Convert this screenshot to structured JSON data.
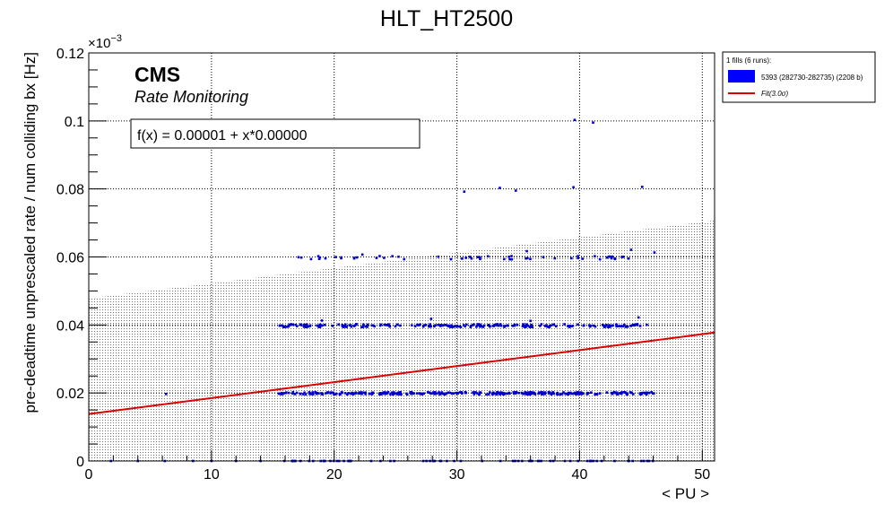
{
  "chart_data": {
    "type": "scatter",
    "title": "HLT_HT2500",
    "xlabel": "< PU >",
    "ylabel": "pre-deadtime unprescaled rate / num colliding bx [Hz]",
    "y_exponent_label": "×10",
    "y_exponent_power": "−3",
    "xlim": [
      0,
      51
    ],
    "ylim": [
      0,
      0.12
    ],
    "x_ticks": [
      0,
      10,
      20,
      30,
      40,
      50
    ],
    "x_tick_labels": [
      "0",
      "10",
      "20",
      "30",
      "40",
      "50"
    ],
    "y_ticks": [
      0,
      0.02,
      0.04,
      0.06,
      0.08,
      0.1,
      0.12
    ],
    "y_tick_labels": [
      "0",
      "0.02",
      "0.04",
      "0.06",
      "0.08",
      "0.1",
      "0.12"
    ],
    "grid": true,
    "cms_label": "CMS",
    "cms_sublabel": "Rate Monitoring",
    "fit_formula": "f(x) = 0.00001 + x*0.00000",
    "legend": {
      "placement": "outside-top-right",
      "header": "1 fills (6 runs):",
      "entries": [
        {
          "label": "5393 (282730-282735) (2208 b)",
          "color": "#0000ff",
          "kind": "box"
        },
        {
          "label": "Fit(3.0σ)",
          "color": "#dd0000",
          "kind": "line"
        }
      ]
    },
    "fit": {
      "intercept": 0.0138,
      "slope": 0.00047,
      "x_range": [
        0,
        51
      ],
      "color": "#dd0000"
    },
    "band": {
      "lower_intercept": 0.0,
      "lower_slope": 0.0,
      "upper_intercept": 0.0478,
      "upper_slope": 0.00045
    },
    "series": [
      {
        "color": "#0000cc",
        "clusters": [
          {
            "y": 0.0199,
            "x_start": 15.3,
            "x_end": 46.2,
            "n": 330,
            "spread": 0.00035
          },
          {
            "y": 0.0398,
            "x_start": 15.5,
            "x_end": 45.6,
            "n": 230,
            "spread": 0.00045
          },
          {
            "y": 0.0598,
            "x_start": 16.5,
            "x_end": 45.0,
            "n": 55,
            "spread": 0.0005
          },
          {
            "y": 0.0,
            "x_start": 15.5,
            "x_end": 46.0,
            "n": 70,
            "spread": 0.0
          }
        ],
        "points": [
          {
            "x": 1.8,
            "y": 0.0
          },
          {
            "x": 4.0,
            "y": 0.0
          },
          {
            "x": 6.2,
            "y": 0.0
          },
          {
            "x": 8.5,
            "y": 0.0
          },
          {
            "x": 10.0,
            "y": 0.0
          },
          {
            "x": 12.0,
            "y": 0.0
          },
          {
            "x": 14.0,
            "y": 0.0
          },
          {
            "x": 6.3,
            "y": 0.0197
          },
          {
            "x": 30.6,
            "y": 0.0792
          },
          {
            "x": 33.5,
            "y": 0.0803
          },
          {
            "x": 34.8,
            "y": 0.0795
          },
          {
            "x": 39.5,
            "y": 0.0805
          },
          {
            "x": 45.1,
            "y": 0.0806
          },
          {
            "x": 39.6,
            "y": 0.1003
          },
          {
            "x": 41.1,
            "y": 0.0995
          },
          {
            "x": 22.3,
            "y": 0.0607
          },
          {
            "x": 35.7,
            "y": 0.0617
          },
          {
            "x": 44.2,
            "y": 0.0621
          },
          {
            "x": 46.1,
            "y": 0.0613
          },
          {
            "x": 27.9,
            "y": 0.0418
          },
          {
            "x": 44.8,
            "y": 0.0422
          },
          {
            "x": 36.0,
            "y": 0.0412
          },
          {
            "x": 19.0,
            "y": 0.0413
          }
        ]
      }
    ]
  }
}
